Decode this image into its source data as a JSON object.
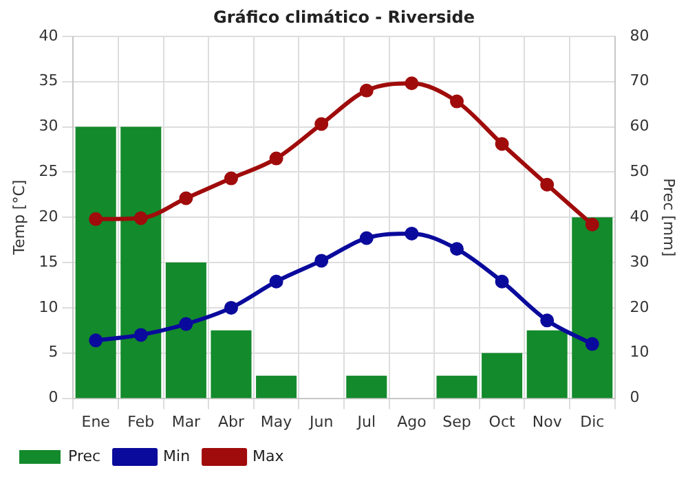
{
  "chart_data": {
    "type": "bar",
    "title": "Gráfico climático - Riverside",
    "ylabel": "Temp [°C]",
    "y2label": "Prec [mm]",
    "categories": [
      "Ene",
      "Feb",
      "Mar",
      "Abr",
      "May",
      "Jun",
      "Jul",
      "Ago",
      "Sep",
      "Oct",
      "Nov",
      "Dic"
    ],
    "series": [
      {
        "name": "Prec",
        "axis": "y2",
        "color": "#138a2b",
        "values": [
          60,
          60,
          30,
          15,
          5,
          0,
          5,
          0,
          5,
          10,
          15,
          40
        ]
      },
      {
        "name": "Min",
        "type": "line",
        "color": "#0a0a9c",
        "values": [
          6.4,
          7.0,
          8.2,
          10.0,
          12.9,
          15.2,
          17.7,
          18.2,
          16.5,
          12.9,
          8.6,
          6.0
        ]
      },
      {
        "name": "Max",
        "type": "line",
        "color": "#a00b0b",
        "values": [
          19.8,
          19.9,
          22.1,
          24.3,
          26.5,
          30.3,
          34.0,
          34.8,
          32.8,
          28.1,
          23.6,
          19.2
        ]
      }
    ],
    "ylim": [
      0,
      40
    ],
    "yticks": [
      0,
      5,
      10,
      15,
      20,
      25,
      30,
      35,
      40
    ],
    "y2lim": [
      0,
      80
    ],
    "y2ticks": [
      0,
      10,
      20,
      30,
      40,
      50,
      60,
      70,
      80
    ],
    "grid": true,
    "legend": "bottom left",
    "marker": "circle"
  }
}
